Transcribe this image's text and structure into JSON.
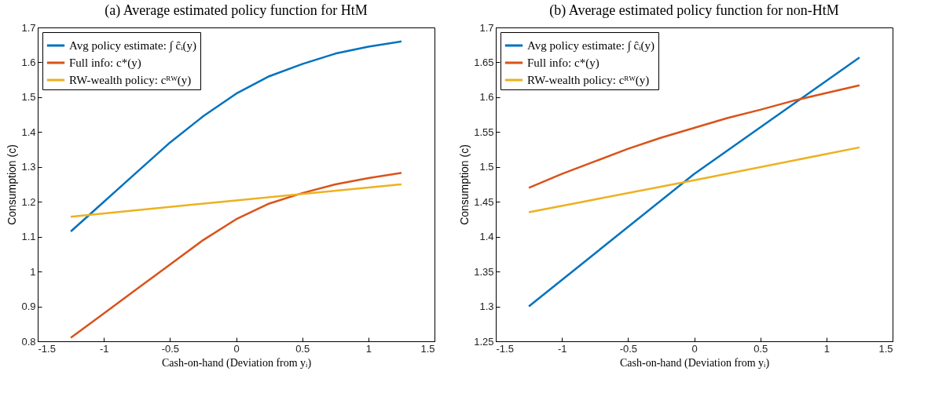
{
  "chart_data": [
    {
      "type": "line",
      "title": "(a) Average estimated policy function for HtM",
      "xlabel": "Cash-on-hand (Deviation from yᵢ)",
      "ylabel": "Consumption (c)",
      "xlim": [
        -1.5,
        1.5
      ],
      "xticks": [
        -1.5,
        -1,
        -0.5,
        0,
        0.5,
        1,
        1.5
      ],
      "ylim": [
        0.8,
        1.7
      ],
      "yticks": [
        0.8,
        0.9,
        1,
        1.1,
        1.2,
        1.3,
        1.4,
        1.5,
        1.6,
        1.7
      ],
      "legend": "top left",
      "series": [
        {
          "name": "Avg policy estimate: ∫ ĉᵢ(y)",
          "color": "#0072bd",
          "x": [
            -1.25,
            -1,
            -0.75,
            -0.5,
            -0.25,
            0,
            0.25,
            0.5,
            0.75,
            1,
            1.25
          ],
          "values": [
            1.115,
            1.2,
            1.285,
            1.37,
            1.445,
            1.51,
            1.56,
            1.595,
            1.625,
            1.645,
            1.66
          ]
        },
        {
          "name": "Full info: c*(y)",
          "color": "#d95319",
          "x": [
            -1.25,
            -1,
            -0.75,
            -0.5,
            -0.25,
            0,
            0.25,
            0.5,
            0.75,
            1,
            1.25
          ],
          "values": [
            0.81,
            0.88,
            0.95,
            1.02,
            1.09,
            1.15,
            1.195,
            1.225,
            1.25,
            1.268,
            1.283
          ]
        },
        {
          "name": "RW-wealth policy: cᴿᵂ(y)",
          "color": "#edb120",
          "x": [
            -1.25,
            0,
            1.25
          ],
          "values": [
            1.157,
            1.204,
            1.25
          ]
        }
      ]
    },
    {
      "type": "line",
      "title": "(b) Average estimated policy function for non-HtM",
      "xlabel": "Cash-on-hand (Deviation from yᵢ)",
      "ylabel": "Consumption (c)",
      "xlim": [
        -1.5,
        1.5
      ],
      "xticks": [
        -1.5,
        -1,
        -0.5,
        0,
        0.5,
        1,
        1.5
      ],
      "ylim": [
        1.25,
        1.7
      ],
      "yticks": [
        1.25,
        1.3,
        1.35,
        1.4,
        1.45,
        1.5,
        1.55,
        1.6,
        1.65,
        1.7
      ],
      "legend": "top left",
      "series": [
        {
          "name": "Avg policy estimate: ∫ ĉᵢ(y)",
          "color": "#0072bd",
          "x": [
            -1.25,
            0,
            1.25
          ],
          "values": [
            1.3,
            1.49,
            1.657
          ]
        },
        {
          "name": "Full info: c*(y)",
          "color": "#d95319",
          "x": [
            -1.25,
            -1,
            -0.75,
            -0.5,
            -0.25,
            0,
            0.25,
            0.5,
            0.75,
            1,
            1.25
          ],
          "values": [
            1.47,
            1.49,
            1.508,
            1.526,
            1.542,
            1.556,
            1.57,
            1.582,
            1.595,
            1.606,
            1.617
          ]
        },
        {
          "name": "RW-wealth policy: cᴿᵂ(y)",
          "color": "#edb120",
          "x": [
            -1.25,
            0,
            1.25
          ],
          "values": [
            1.435,
            1.481,
            1.528
          ]
        }
      ]
    }
  ]
}
